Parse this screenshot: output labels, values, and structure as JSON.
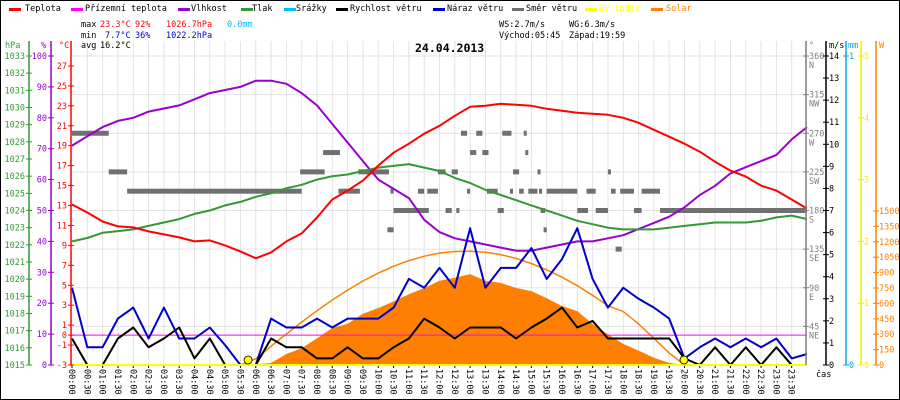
{
  "stats": {
    "max_label": "max",
    "max_temp": "23.3°C",
    "max_hum": "92%",
    "max_press": "1026.7hPa",
    "rain": "0.0mm",
    "min_label": "min",
    "min_temp": "7.7°C",
    "min_hum": "36%",
    "min_press": "1022.2hPa",
    "avg_label": "avg",
    "avg_temp": "16.2°C",
    "ws": "WS:2.7m/s",
    "wg": "WG:6.3m/s",
    "sunrise": "Východ:05:45",
    "sunset": "Západ:19:59"
  },
  "colors": {
    "max": "#ff0000",
    "min": "#0000cc",
    "rain": "#00bbff"
  },
  "chart_data": {
    "type": "line",
    "title": "24.04.2013",
    "xlabel": "čas",
    "grid": true,
    "legend_position": "top",
    "x_ticks": [
      "00:00",
      "00:30",
      "01:00",
      "01:30",
      "02:00",
      "02:30",
      "03:00",
      "03:30",
      "04:00",
      "04:30",
      "05:00",
      "05:30",
      "06:00",
      "06:30",
      "07:00",
      "07:30",
      "08:00",
      "08:30",
      "09:00",
      "09:30",
      "10:00",
      "10:30",
      "11:00",
      "11:30",
      "12:00",
      "12:30",
      "13:00",
      "13:30",
      "14:00",
      "14:30",
      "15:00",
      "15:30",
      "16:00",
      "16:30",
      "17:00",
      "17:30",
      "18:00",
      "18:30",
      "19:00",
      "19:30",
      "20:00",
      "20:30",
      "21:00",
      "21:30",
      "22:00",
      "22:30",
      "23:00",
      "23:30"
    ],
    "xlim": [
      "00:00",
      "24:00"
    ],
    "axes": {
      "hpa": {
        "unit": "hPa",
        "color": "#339933",
        "range": [
          1015,
          1033
        ],
        "ticks": [
          1015,
          1016,
          1017,
          1018,
          1019,
          1020,
          1021,
          1022,
          1023,
          1024,
          1025,
          1026,
          1027,
          1028,
          1029,
          1030,
          1031,
          1032,
          1033
        ]
      },
      "pct": {
        "unit": "%",
        "color": "#9900cc",
        "range": [
          0,
          100
        ],
        "ticks": [
          0,
          10,
          20,
          30,
          40,
          50,
          60,
          70,
          80,
          90,
          100
        ]
      },
      "temp": {
        "unit": "°C",
        "color": "#ff0000",
        "range": [
          -3,
          28
        ],
        "ticks": [
          -3,
          -1,
          0,
          1,
          3,
          5,
          7,
          9,
          11,
          13,
          15,
          17,
          19,
          21,
          23,
          25,
          27
        ]
      },
      "dir": {
        "unit": "°",
        "color": "#808080",
        "range": [
          0,
          360
        ],
        "ticks": [
          {
            "v": 45,
            "d": "NE"
          },
          {
            "v": 90,
            "d": "E"
          },
          {
            "v": 135,
            "d": "SE"
          },
          {
            "v": 180,
            "d": "S"
          },
          {
            "v": 225,
            "d": "SW"
          },
          {
            "v": 270,
            "d": "W"
          },
          {
            "v": 315,
            "d": "NW"
          },
          {
            "v": 360,
            "d": "N"
          }
        ]
      },
      "ms": {
        "unit": "m/s",
        "color": "#000000",
        "range": [
          0,
          14
        ],
        "ticks": [
          0,
          1,
          2,
          3,
          4,
          5,
          6,
          7,
          8,
          9,
          10,
          11,
          12,
          13,
          14
        ]
      },
      "mm": {
        "unit": "mm",
        "color": "#00aaee",
        "range": [
          0,
          1
        ],
        "ticks": [
          0,
          1
        ]
      },
      "uv": {
        "unit": "",
        "color": "#eeee00",
        "range": [
          0,
          5
        ],
        "ticks": [
          0,
          1,
          2,
          3,
          4,
          5
        ]
      },
      "w": {
        "unit": "W",
        "color": "#ff8000",
        "range": [
          0,
          3010
        ],
        "ticks": [
          0,
          150,
          300,
          450,
          600,
          750,
          900,
          1050,
          1200,
          1350,
          1500
        ]
      }
    },
    "half_hours": [
      "00:00",
      "00:30",
      "01:00",
      "01:30",
      "02:00",
      "02:30",
      "03:00",
      "03:30",
      "04:00",
      "04:30",
      "05:00",
      "05:30",
      "06:00",
      "06:30",
      "07:00",
      "07:30",
      "08:00",
      "08:30",
      "09:00",
      "09:30",
      "10:00",
      "10:30",
      "11:00",
      "11:30",
      "12:00",
      "12:30",
      "13:00",
      "13:30",
      "14:00",
      "14:30",
      "15:00",
      "15:30",
      "16:00",
      "16:30",
      "17:00",
      "17:30",
      "18:00",
      "18:30",
      "19:00",
      "19:30",
      "20:00",
      "20:30",
      "21:00",
      "21:30",
      "22:00",
      "22:30",
      "23:00",
      "23:30",
      "24:00"
    ],
    "series": [
      {
        "key": "temp",
        "name": "Teplota",
        "color": "#ff0000",
        "axis": "temp",
        "values": [
          13.1,
          12.3,
          11.4,
          10.9,
          10.8,
          10.4,
          10.1,
          9.8,
          9.4,
          9.5,
          9.0,
          8.4,
          7.7,
          8.3,
          9.4,
          10.2,
          11.8,
          13.6,
          14.5,
          15.5,
          17.0,
          18.3,
          19.2,
          20.2,
          21.0,
          22.0,
          22.9,
          23.0,
          23.2,
          23.1,
          23.0,
          22.7,
          22.5,
          22.3,
          22.2,
          22.1,
          21.8,
          21.3,
          20.6,
          19.9,
          19.2,
          18.4,
          17.4,
          16.5,
          15.9,
          15.0,
          14.5,
          13.6,
          12.7
        ]
      },
      {
        "key": "ground",
        "name": "Přízemní teplota",
        "color": "#ff00ff",
        "axis": "temp",
        "values": [
          0,
          0,
          0,
          0,
          0,
          0,
          0,
          0,
          0,
          0,
          0,
          0,
          0,
          0,
          0,
          0,
          0,
          0,
          0,
          0,
          0,
          0,
          0,
          0,
          0,
          0,
          0,
          0,
          0,
          0,
          0,
          0,
          0,
          0,
          0,
          0,
          0,
          0,
          0,
          0,
          0,
          0,
          0,
          0,
          0,
          0,
          0,
          0,
          0
        ]
      },
      {
        "key": "hum",
        "name": "Vlhkost",
        "color": "#9900cc",
        "axis": "pct",
        "values": [
          71,
          74,
          77,
          79,
          80,
          82,
          83,
          84,
          86,
          88,
          89,
          90,
          92,
          92,
          91,
          88,
          84,
          78,
          72,
          66,
          60,
          57,
          54,
          47,
          43,
          41,
          40,
          39,
          38,
          37,
          37,
          38,
          39,
          40,
          40,
          41,
          42,
          44,
          46,
          48,
          51,
          55,
          58,
          62,
          64,
          66,
          68,
          73,
          77
        ]
      },
      {
        "key": "press",
        "name": "Tlak",
        "color": "#339933",
        "axis": "hpa",
        "values": [
          1022.2,
          1022.4,
          1022.7,
          1022.8,
          1022.9,
          1023.1,
          1023.3,
          1023.5,
          1023.8,
          1024.0,
          1024.3,
          1024.5,
          1024.8,
          1025.0,
          1025.3,
          1025.5,
          1025.8,
          1026.0,
          1026.1,
          1026.3,
          1026.5,
          1026.6,
          1026.7,
          1026.5,
          1026.3,
          1025.9,
          1025.6,
          1025.2,
          1024.9,
          1024.6,
          1024.3,
          1024.0,
          1023.7,
          1023.4,
          1023.2,
          1023.0,
          1022.9,
          1022.9,
          1022.9,
          1023.0,
          1023.1,
          1023.2,
          1023.3,
          1023.3,
          1023.3,
          1023.4,
          1023.6,
          1023.7,
          1023.5
        ]
      },
      {
        "key": "rain",
        "name": "Srážky",
        "color": "#00bbff",
        "axis": "mm",
        "values": [
          0,
          0,
          0,
          0,
          0,
          0,
          0,
          0,
          0,
          0,
          0,
          0,
          0,
          0,
          0,
          0,
          0,
          0,
          0,
          0,
          0,
          0,
          0,
          0,
          0,
          0,
          0,
          0,
          0,
          0,
          0,
          0,
          0,
          0,
          0,
          0,
          0,
          0,
          0,
          0,
          0,
          0,
          0,
          0,
          0,
          0,
          0,
          0,
          0
        ]
      },
      {
        "key": "wind",
        "name": "Rychlost větru",
        "color": "#000000",
        "axis": "ms",
        "values": [
          1.2,
          0,
          0,
          1.2,
          1.7,
          0.8,
          1.2,
          1.7,
          0.3,
          1.2,
          0,
          0,
          0,
          1.2,
          0.8,
          0.8,
          0.3,
          0.3,
          0.8,
          0.3,
          0.3,
          0.8,
          1.2,
          2.1,
          1.7,
          1.2,
          1.7,
          1.7,
          1.7,
          1.2,
          1.7,
          2.1,
          2.6,
          1.7,
          2.0,
          1.2,
          1.2,
          1.2,
          1.2,
          1.2,
          0.3,
          0,
          0.8,
          0,
          0.8,
          0,
          0.8,
          0,
          0
        ]
      },
      {
        "key": "gust",
        "name": "Náraz větru",
        "color": "#0000cc",
        "axis": "ms",
        "values": [
          3.5,
          0.8,
          0.8,
          2.1,
          2.6,
          1.2,
          2.6,
          1.2,
          1.2,
          1.7,
          0.9,
          0,
          0,
          2.1,
          1.7,
          1.7,
          2.1,
          1.7,
          2.1,
          2.1,
          2.1,
          2.6,
          3.9,
          3.5,
          4.4,
          3.5,
          6.2,
          3.5,
          4.4,
          4.4,
          5.3,
          3.9,
          4.8,
          6.2,
          3.9,
          2.6,
          3.5,
          3.0,
          2.6,
          2.1,
          0.3,
          0.8,
          1.2,
          0.8,
          1.2,
          0.8,
          1.2,
          0.3,
          0.5
        ]
      },
      {
        "key": "dir",
        "name": "Směr větru",
        "color": "#707070",
        "axis": "dir",
        "segments": [
          [
            "00:00",
            "01:12",
            270
          ],
          [
            "01:12",
            "01:48",
            225
          ],
          [
            "01:48",
            "07:30",
            202.5
          ],
          [
            "07:27",
            "08:15",
            225
          ],
          [
            "08:12",
            "08:45",
            247.5
          ],
          [
            "08:42",
            "09:24",
            202.5
          ],
          [
            "09:21",
            "10:21",
            225
          ],
          [
            "10:18",
            "10:30",
            157.5
          ],
          [
            "10:24",
            "10:30",
            202.5
          ],
          [
            "10:30",
            "11:39",
            180
          ],
          [
            "11:18",
            "11:30",
            202.5
          ],
          [
            "11:36",
            "11:57",
            202.5
          ],
          [
            "11:57",
            "12:12",
            225
          ],
          [
            "12:12",
            "12:24",
            180
          ],
          [
            "12:24",
            "12:36",
            225
          ],
          [
            "12:33",
            "12:39",
            180
          ],
          [
            "12:42",
            "12:54",
            270
          ],
          [
            "12:54",
            "13:00",
            202.5
          ],
          [
            "13:00",
            "13:12",
            247.5
          ],
          [
            "13:12",
            "13:24",
            270
          ],
          [
            "13:24",
            "13:36",
            247.5
          ],
          [
            "13:33",
            "13:54",
            202.5
          ],
          [
            "13:54",
            "14:06",
            180
          ],
          [
            "14:03",
            "14:21",
            270
          ],
          [
            "14:18",
            "14:24",
            202.5
          ],
          [
            "14:24",
            "14:36",
            225
          ],
          [
            "14:36",
            "14:45",
            202.5
          ],
          [
            "14:45",
            "14:51",
            270
          ],
          [
            "14:48",
            "14:54",
            247.5
          ],
          [
            "14:54",
            "15:12",
            202.5
          ],
          [
            "15:12",
            "15:18",
            225
          ],
          [
            "15:15",
            "15:21",
            202.5
          ],
          [
            "15:18",
            "15:27",
            180
          ],
          [
            "15:24",
            "15:30",
            157.5
          ],
          [
            "15:30",
            "16:30",
            202.5
          ],
          [
            "16:30",
            "16:51",
            180
          ],
          [
            "16:48",
            "17:06",
            202.5
          ],
          [
            "17:06",
            "17:30",
            180
          ],
          [
            "17:30",
            "17:36",
            225
          ],
          [
            "17:36",
            "17:45",
            202.5
          ],
          [
            "17:45",
            "17:57",
            135
          ],
          [
            "17:54",
            "18:21",
            202.5
          ],
          [
            "18:21",
            "18:36",
            180
          ],
          [
            "18:36",
            "19:12",
            202.5
          ],
          [
            "19:12",
            "24:00",
            180
          ]
        ]
      },
      {
        "key": "uv",
        "name": "UV index",
        "color": "#ffff00",
        "axis": "uv",
        "values": [
          0,
          0,
          0,
          0,
          0,
          0,
          0,
          0,
          0,
          0,
          0,
          0,
          0,
          0,
          0,
          0,
          0,
          0,
          0,
          0,
          0,
          0,
          0,
          0,
          0,
          0,
          0,
          0,
          0,
          0,
          0,
          0,
          0,
          0,
          0,
          0,
          0,
          0,
          0,
          0,
          0,
          0,
          0,
          0,
          0,
          0,
          0,
          0,
          0
        ]
      },
      {
        "key": "solar",
        "name": "Solar",
        "color": "#ff8000",
        "axis": "w",
        "style": "area",
        "values": [
          0,
          0,
          0,
          0,
          0,
          0,
          0,
          0,
          0,
          0,
          0,
          0,
          5,
          20,
          107,
          165,
          260,
          360,
          400,
          500,
          555,
          620,
          690,
          750,
          820,
          850,
          885,
          820,
          800,
          750,
          720,
          650,
          575,
          525,
          400,
          300,
          205,
          140,
          70,
          20,
          0,
          0,
          0,
          0,
          0,
          0,
          0,
          0,
          0
        ]
      },
      {
        "key": "solar_max",
        "color": "#ff8000",
        "axis": "w",
        "style": "line",
        "values": [
          0,
          0,
          0,
          0,
          0,
          0,
          0,
          0,
          0,
          0,
          0,
          0,
          61,
          183,
          302,
          418,
          529,
          633,
          730,
          818,
          895,
          962,
          1017,
          1060,
          1090,
          1106,
          1109,
          1099,
          1075,
          1038,
          989,
          927,
          855,
          772,
          678,
          578,
          520,
          400,
          260,
          117,
          0,
          0,
          0,
          0,
          0,
          0,
          0,
          0,
          0
        ]
      }
    ],
    "sun_markers": [
      "05:45",
      "19:59"
    ]
  }
}
